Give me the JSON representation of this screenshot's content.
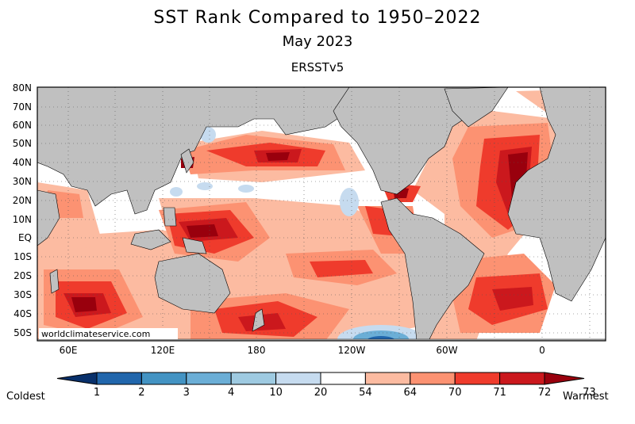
{
  "titles": {
    "main": "SST Rank Compared to 1950–2022",
    "period": "May 2023",
    "dataset": "ERSSTv5"
  },
  "watermark": "worldclimateservice.com",
  "axes": {
    "lat_labels": [
      "80N",
      "70N",
      "60N",
      "50N",
      "40N",
      "30N",
      "20N",
      "10N",
      "EQ",
      "10S",
      "20S",
      "30S",
      "40S",
      "50S"
    ],
    "lon_labels": [
      "60E",
      "120E",
      "180",
      "120W",
      "60W",
      "0"
    ]
  },
  "colorbar": {
    "left_label": "Coldest",
    "right_label": "Warmest",
    "levels": [
      "1",
      "2",
      "3",
      "4",
      "10",
      "20",
      "54",
      "64",
      "70",
      "71",
      "72",
      "73"
    ],
    "colors": [
      "#08306b",
      "#2166ac",
      "#4393c3",
      "#6baed6",
      "#9ecae1",
      "#c6dbef",
      "#ffffff",
      "#fcbba1",
      "#fc9272",
      "#ef3b2c",
      "#cb181d",
      "#99000d"
    ]
  },
  "palette": {
    "land": "#c0c0c0",
    "ocean_neutral": "#ffffff"
  }
}
